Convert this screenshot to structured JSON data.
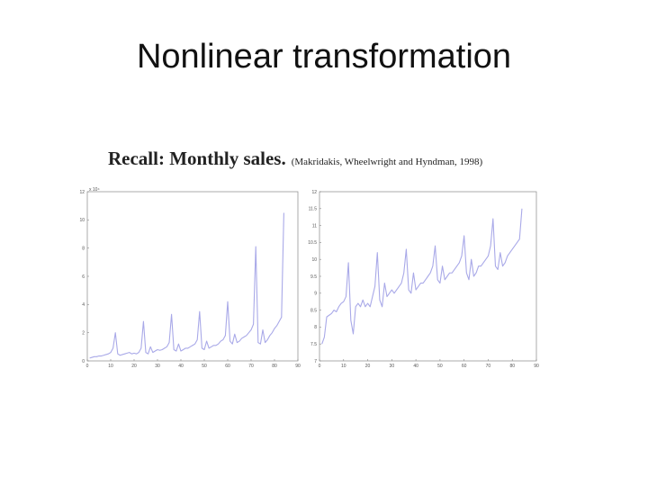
{
  "slide": {
    "title": "Nonlinear transformation"
  },
  "caption": {
    "heading": "Recall: Monthly sales.",
    "citation": "(Makridakis, Wheelwright and Hyndman, 1998)"
  },
  "colors": {
    "series": "#a9a9e8",
    "axis": "#888888",
    "text": "#111111"
  },
  "chart_data": [
    {
      "type": "line",
      "title": "",
      "xlabel": "",
      "ylabel": "",
      "xlim": [
        0,
        90
      ],
      "ylim": [
        0,
        12
      ],
      "y_multiplier_label": "x 10⁴",
      "xticks": [
        0,
        10,
        20,
        30,
        40,
        50,
        60,
        70,
        80,
        90
      ],
      "yticks": [
        0,
        2,
        4,
        6,
        8,
        10,
        12
      ],
      "grid": false,
      "series": [
        {
          "x": [
            1,
            2,
            3,
            4,
            5,
            6,
            7,
            8,
            9,
            10,
            11,
            12,
            13,
            14,
            15,
            16,
            17,
            18,
            19,
            20,
            21,
            22,
            23,
            24,
            25,
            26,
            27,
            28,
            29,
            30,
            31,
            32,
            33,
            34,
            35,
            36,
            37,
            38,
            39,
            40,
            41,
            42,
            43,
            44,
            45,
            46,
            47,
            48,
            49,
            50,
            51,
            52,
            53,
            54,
            55,
            56,
            57,
            58,
            59,
            60,
            61,
            62,
            63,
            64,
            65,
            66,
            67,
            68,
            69,
            70,
            71,
            72,
            73,
            74,
            75,
            76,
            77,
            78,
            79,
            80,
            81,
            82,
            83,
            84
          ],
          "y": [
            0.2,
            0.25,
            0.3,
            0.3,
            0.35,
            0.35,
            0.4,
            0.45,
            0.5,
            0.6,
            0.9,
            2.0,
            0.5,
            0.4,
            0.45,
            0.5,
            0.55,
            0.6,
            0.5,
            0.55,
            0.5,
            0.6,
            0.9,
            2.8,
            0.6,
            0.5,
            1.0,
            0.6,
            0.7,
            0.8,
            0.75,
            0.8,
            0.9,
            1.0,
            1.3,
            3.3,
            0.8,
            0.7,
            1.2,
            0.7,
            0.8,
            0.9,
            0.9,
            1.0,
            1.1,
            1.2,
            1.5,
            3.5,
            0.9,
            0.8,
            1.4,
            0.9,
            1.0,
            1.1,
            1.1,
            1.2,
            1.4,
            1.5,
            1.8,
            4.2,
            1.4,
            1.2,
            1.9,
            1.3,
            1.4,
            1.6,
            1.7,
            1.8,
            2.0,
            2.2,
            2.6,
            8.1,
            1.3,
            1.2,
            2.2,
            1.3,
            1.5,
            1.8,
            2.0,
            2.3,
            2.5,
            2.8,
            3.1,
            10.5
          ]
        }
      ]
    },
    {
      "type": "line",
      "title": "",
      "xlabel": "",
      "ylabel": "",
      "xlim": [
        0,
        90
      ],
      "ylim": [
        7,
        12
      ],
      "xticks": [
        0,
        10,
        20,
        30,
        40,
        50,
        60,
        70,
        80,
        90
      ],
      "yticks": [
        7,
        7.5,
        8,
        8.5,
        9,
        9.5,
        10,
        10.5,
        11,
        11.5,
        12
      ],
      "grid": false,
      "series": [
        {
          "x": [
            1,
            2,
            3,
            4,
            5,
            6,
            7,
            8,
            9,
            10,
            11,
            12,
            13,
            14,
            15,
            16,
            17,
            18,
            19,
            20,
            21,
            22,
            23,
            24,
            25,
            26,
            27,
            28,
            29,
            30,
            31,
            32,
            33,
            34,
            35,
            36,
            37,
            38,
            39,
            40,
            41,
            42,
            43,
            44,
            45,
            46,
            47,
            48,
            49,
            50,
            51,
            52,
            53,
            54,
            55,
            56,
            57,
            58,
            59,
            60,
            61,
            62,
            63,
            64,
            65,
            66,
            67,
            68,
            69,
            70,
            71,
            72,
            73,
            74,
            75,
            76,
            77,
            78,
            79,
            80,
            81,
            82,
            83,
            84
          ],
          "y": [
            7.5,
            7.7,
            8.3,
            8.35,
            8.4,
            8.5,
            8.45,
            8.6,
            8.7,
            8.75,
            8.9,
            9.9,
            8.2,
            7.8,
            8.6,
            8.7,
            8.6,
            8.8,
            8.6,
            8.7,
            8.6,
            8.9,
            9.2,
            10.2,
            8.8,
            8.6,
            9.3,
            8.9,
            9.0,
            9.1,
            9.0,
            9.1,
            9.2,
            9.3,
            9.6,
            10.3,
            9.1,
            9.0,
            9.6,
            9.1,
            9.2,
            9.3,
            9.3,
            9.4,
            9.5,
            9.6,
            9.8,
            10.4,
            9.4,
            9.3,
            9.8,
            9.4,
            9.5,
            9.6,
            9.6,
            9.7,
            9.8,
            9.9,
            10.1,
            10.7,
            9.6,
            9.4,
            10.0,
            9.5,
            9.6,
            9.8,
            9.8,
            9.9,
            10.0,
            10.1,
            10.4,
            11.2,
            9.8,
            9.7,
            10.2,
            9.8,
            9.9,
            10.1,
            10.2,
            10.3,
            10.4,
            10.5,
            10.6,
            11.5
          ]
        }
      ]
    }
  ]
}
